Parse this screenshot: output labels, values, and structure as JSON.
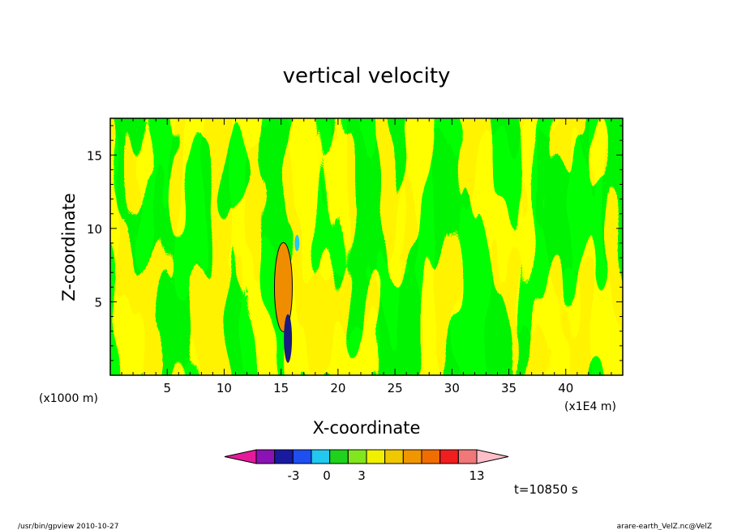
{
  "chart_data": {
    "type": "heatmap",
    "title": "vertical velocity",
    "xlabel": "X-coordinate",
    "ylabel": "Z-coordinate",
    "x_unit_left": "(x1000 m)",
    "x_unit_right": "(x1E4 m)",
    "xlim": [
      0,
      45
    ],
    "ylim": [
      0,
      17.5
    ],
    "x_ticks": [
      "5",
      "10",
      "15",
      "20",
      "25",
      "30",
      "35",
      "40"
    ],
    "y_ticks": [
      "5",
      "10",
      "15"
    ],
    "colorbar": {
      "colors": [
        "#e6199b",
        "#8b12b5",
        "#1a1aa0",
        "#1e4ff0",
        "#22c8f0",
        "#1ed21e",
        "#82e61e",
        "#f0f000",
        "#f0c800",
        "#f09600",
        "#f06e00",
        "#f01e1e",
        "#f07878",
        "#ffbec8"
      ],
      "tick_labels": [
        "-3",
        "0",
        "3",
        "13"
      ]
    },
    "annotation": "t=10850 s",
    "palette": {
      "green": "#00e600",
      "yellow": "#ffff00",
      "orange": "#f08c00",
      "dark": "#1a1a80"
    }
  },
  "footer": {
    "left": "/usr/bin/gpview   2010-10-27",
    "right": "arare-earth_VelZ.nc@VelZ"
  }
}
